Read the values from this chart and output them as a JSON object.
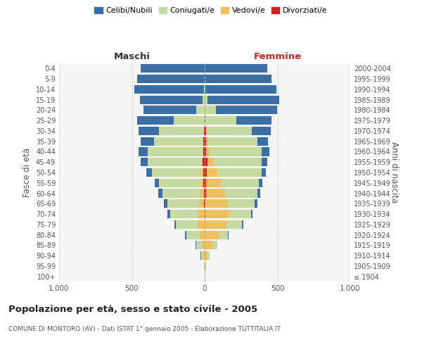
{
  "age_groups": [
    "100+",
    "95-99",
    "90-94",
    "85-89",
    "80-84",
    "75-79",
    "70-74",
    "65-69",
    "60-64",
    "55-59",
    "50-54",
    "45-49",
    "40-44",
    "35-39",
    "30-34",
    "25-29",
    "20-24",
    "15-19",
    "10-14",
    "5-9",
    "0-4"
  ],
  "birth_years": [
    "≤ 1904",
    "1905-1909",
    "1910-1914",
    "1915-1919",
    "1920-1924",
    "1925-1929",
    "1930-1934",
    "1935-1939",
    "1940-1944",
    "1945-1949",
    "1950-1954",
    "1955-1959",
    "1960-1964",
    "1965-1969",
    "1970-1974",
    "1975-1979",
    "1980-1984",
    "1985-1989",
    "1990-1994",
    "1995-1999",
    "2000-2004"
  ],
  "male": {
    "celibi": [
      0,
      0,
      2,
      4,
      8,
      12,
      18,
      22,
      28,
      32,
      38,
      48,
      62,
      90,
      140,
      250,
      360,
      430,
      480,
      460,
      440
    ],
    "coniugati": [
      1,
      4,
      18,
      40,
      90,
      150,
      195,
      220,
      260,
      290,
      340,
      370,
      380,
      340,
      310,
      210,
      60,
      15,
      5,
      2,
      1
    ],
    "vedovi": [
      0,
      2,
      8,
      20,
      35,
      45,
      40,
      35,
      25,
      15,
      10,
      5,
      2,
      1,
      0,
      0,
      0,
      0,
      0,
      0,
      0
    ],
    "divorziati": [
      0,
      0,
      0,
      0,
      0,
      1,
      2,
      3,
      5,
      8,
      12,
      15,
      10,
      8,
      5,
      2,
      0,
      0,
      0,
      0,
      0
    ]
  },
  "female": {
    "nubili": [
      0,
      0,
      2,
      3,
      5,
      8,
      12,
      15,
      18,
      22,
      28,
      38,
      52,
      75,
      130,
      240,
      420,
      490,
      490,
      455,
      430
    ],
    "coniugate": [
      1,
      3,
      14,
      30,
      60,
      110,
      155,
      185,
      225,
      260,
      305,
      330,
      360,
      340,
      315,
      215,
      75,
      20,
      5,
      2,
      1
    ],
    "vedove": [
      1,
      5,
      20,
      55,
      100,
      145,
      160,
      155,
      130,
      100,
      70,
      45,
      20,
      10,
      3,
      1,
      0,
      0,
      0,
      0,
      0
    ],
    "divorziate": [
      0,
      0,
      0,
      0,
      1,
      2,
      3,
      5,
      8,
      12,
      15,
      18,
      12,
      10,
      8,
      3,
      1,
      0,
      0,
      0,
      0
    ]
  },
  "colors": {
    "celibi": "#3a6ea5",
    "coniugati": "#c5d9a0",
    "vedovi": "#f0c060",
    "divorziati": "#cc2222"
  },
  "xlim": 1000,
  "title": "Popolazione per età, sesso e stato civile - 2005",
  "subtitle": "COMUNE DI MONTORO (AV) - Dati ISTAT 1° gennaio 2005 - Elaborazione TUTTITALIA.IT",
  "ylabel_left": "Fasce di età",
  "ylabel_right": "Anni di nascita",
  "xlabel_left": "Maschi",
  "xlabel_right": "Femmine",
  "legend_labels": [
    "Celibi/Nubili",
    "Coniugati/e",
    "Vedovi/e",
    "Divorziati/e"
  ],
  "fig_width": 6.0,
  "fig_height": 5.0,
  "dpi": 100
}
